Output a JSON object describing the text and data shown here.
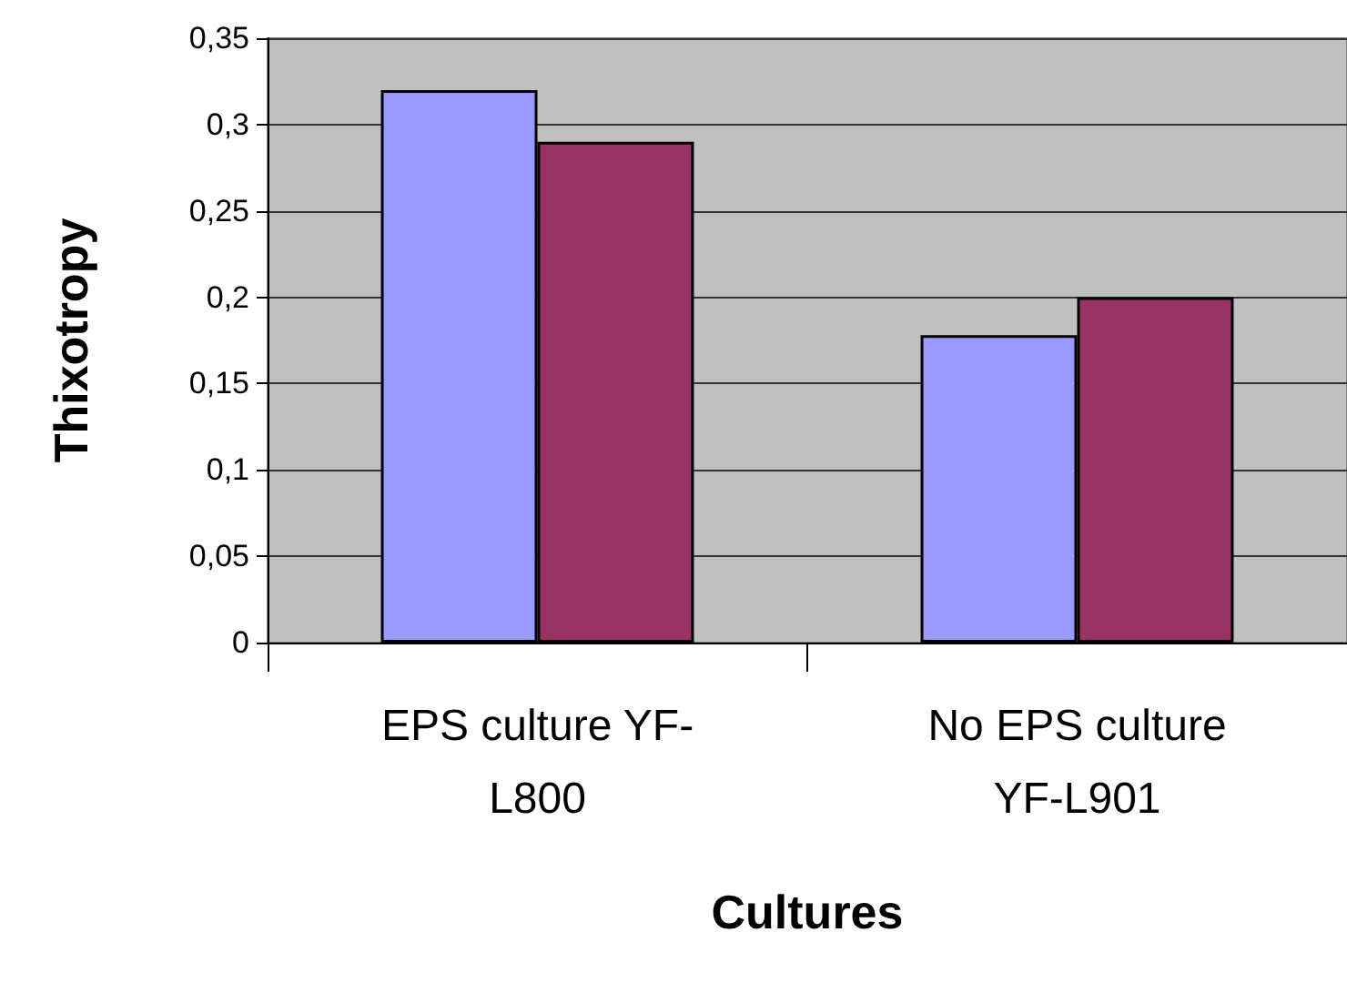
{
  "chart_data": {
    "type": "bar",
    "xlabel": "Cultures",
    "ylabel": "Thixotropy",
    "categories": [
      "EPS culture YF-L800",
      "No EPS culture YF-L901"
    ],
    "series": [
      {
        "color": "#9999ff",
        "values": [
          0.32,
          0.178
        ]
      },
      {
        "color": "#993366",
        "values": [
          0.29,
          0.2
        ]
      }
    ],
    "ylim": [
      0,
      0.35
    ],
    "yticks": [
      0,
      {
        "value": 0.05,
        "label": "0,05"
      },
      {
        "value": 0.1,
        "label": "0,1"
      },
      {
        "value": 0.15,
        "label": "0,15"
      },
      {
        "value": 0.2,
        "label": "0,2"
      },
      {
        "value": 0.25,
        "label": "0,25"
      },
      {
        "value": 0.3,
        "label": "0,3"
      },
      {
        "value": 0.35,
        "label": "0,35"
      }
    ],
    "grid": "y"
  }
}
